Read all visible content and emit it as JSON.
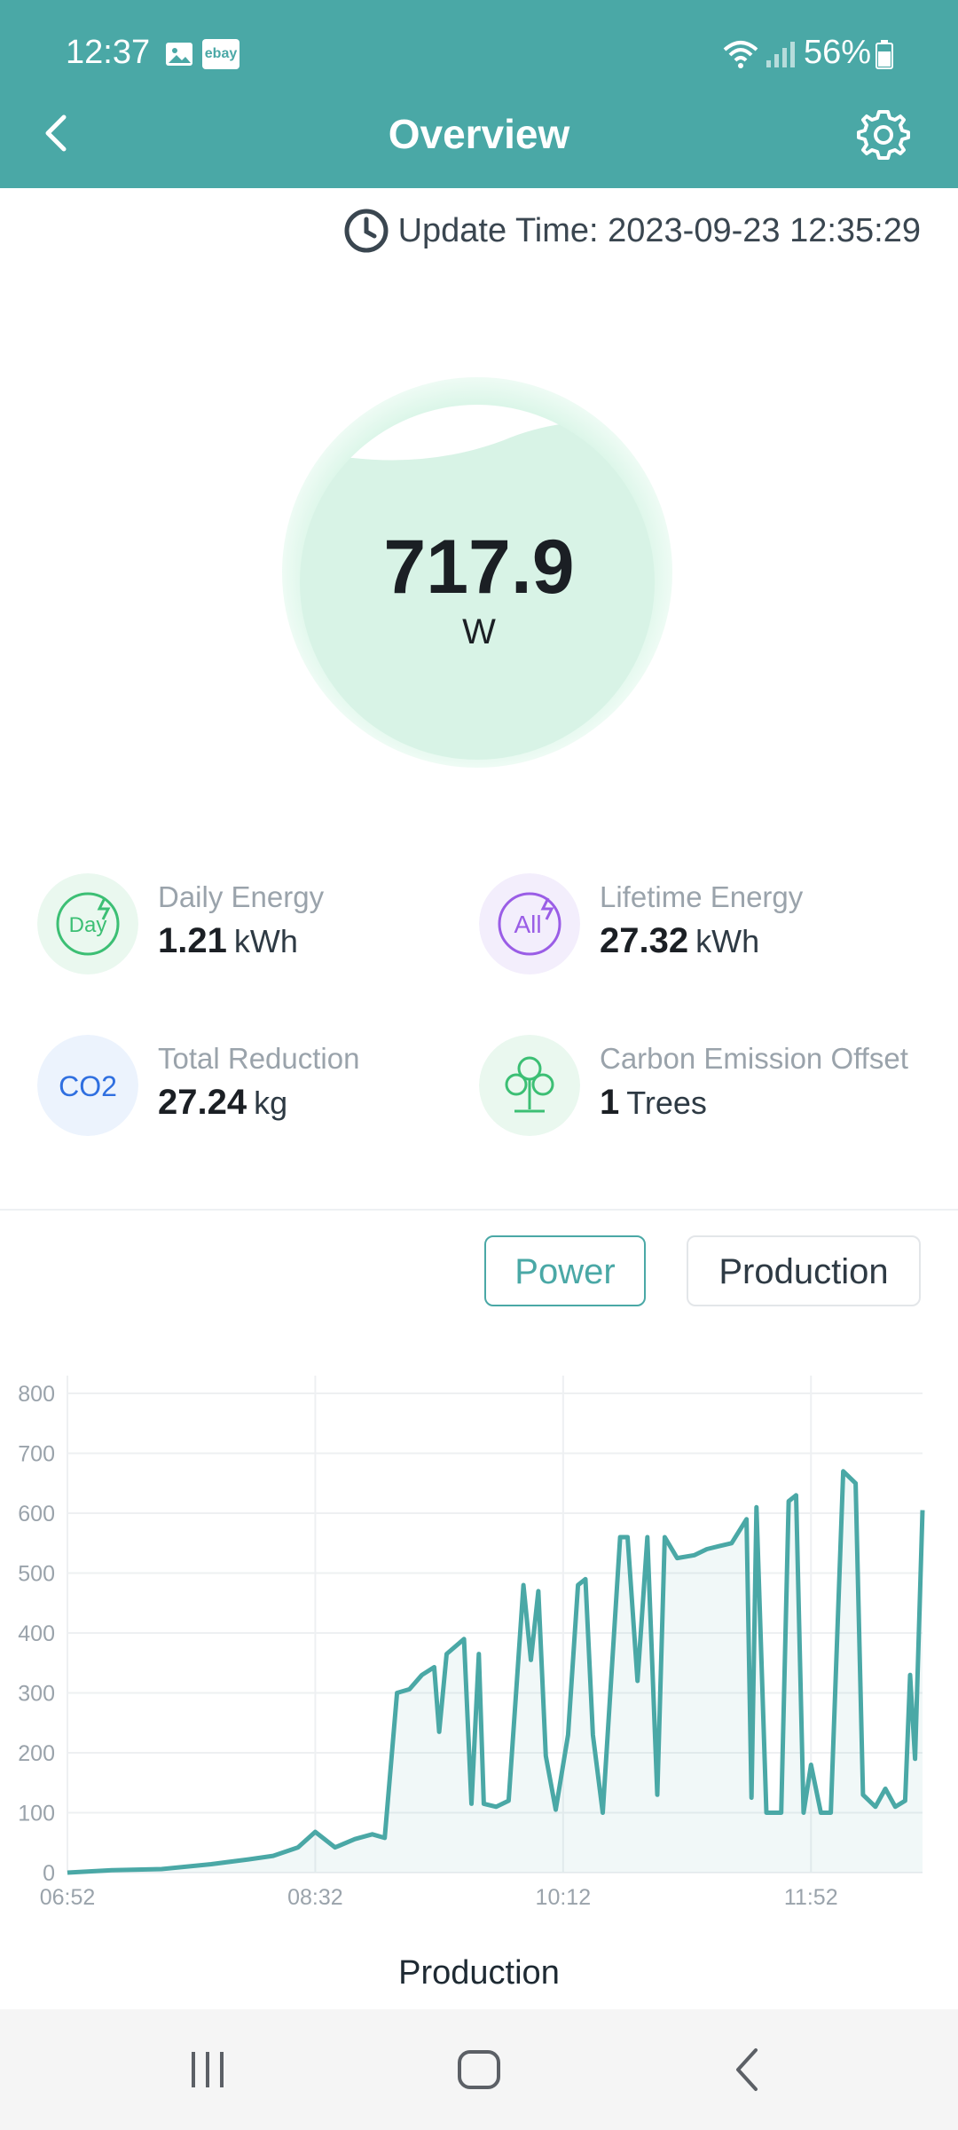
{
  "status_bar": {
    "time": "12:37",
    "battery": "56%",
    "ebay_label": "ebay"
  },
  "header": {
    "title": "Overview"
  },
  "update": {
    "label": "Update Time: 2023-09-23 12:35:29"
  },
  "power": {
    "value": "717.9",
    "unit": "W"
  },
  "stats": [
    {
      "label": "Daily Energy",
      "value": "1.21",
      "unit": "kWh",
      "icon": "day-energy-icon",
      "icon_text": "Day"
    },
    {
      "label": "Lifetime Energy",
      "value": "27.32",
      "unit": "kWh",
      "icon": "all-energy-icon",
      "icon_text": "All"
    },
    {
      "label": "Total Reduction",
      "value": "27.24",
      "unit": "kg",
      "icon": "co2-icon",
      "icon_text": "CO2"
    },
    {
      "label": "Carbon Emission Offset",
      "value": "1",
      "unit": "Trees",
      "icon": "tree-icon"
    }
  ],
  "tabs": {
    "power": "Power",
    "production": "Production"
  },
  "colors": {
    "accent": "#4aa8a6",
    "line": "#4aa8a6"
  },
  "chart_data": {
    "type": "area",
    "x_ticks": [
      "06:52",
      "08:32",
      "10:12",
      "11:52"
    ],
    "y_ticks": [
      "0",
      "100",
      "200",
      "300",
      "400",
      "500",
      "600",
      "700",
      "800"
    ],
    "ylim": [
      0,
      800
    ],
    "x_minutes_range": [
      "06:52",
      "12:37"
    ],
    "series": [
      {
        "name": "Production",
        "points": [
          [
            "06:52",
            0
          ],
          [
            "07:10",
            4
          ],
          [
            "07:30",
            6
          ],
          [
            "07:50",
            14
          ],
          [
            "08:05",
            22
          ],
          [
            "08:15",
            28
          ],
          [
            "08:25",
            42
          ],
          [
            "08:32",
            68
          ],
          [
            "08:40",
            42
          ],
          [
            "08:48",
            56
          ],
          [
            "08:55",
            64
          ],
          [
            "09:00",
            58
          ],
          [
            "09:05",
            300
          ],
          [
            "09:10",
            306
          ],
          [
            "09:15",
            330
          ],
          [
            "09:20",
            343
          ],
          [
            "09:22",
            235
          ],
          [
            "09:25",
            365
          ],
          [
            "09:32",
            390
          ],
          [
            "09:35",
            115
          ],
          [
            "09:38",
            365
          ],
          [
            "09:40",
            115
          ],
          [
            "09:45",
            110
          ],
          [
            "09:50",
            120
          ],
          [
            "09:53",
            300
          ],
          [
            "09:56",
            480
          ],
          [
            "09:59",
            355
          ],
          [
            "10:02",
            470
          ],
          [
            "10:05",
            195
          ],
          [
            "10:09",
            105
          ],
          [
            "10:14",
            230
          ],
          [
            "10:18",
            480
          ],
          [
            "10:21",
            490
          ],
          [
            "10:24",
            230
          ],
          [
            "10:28",
            100
          ],
          [
            "10:35",
            560
          ],
          [
            "10:38",
            560
          ],
          [
            "10:42",
            320
          ],
          [
            "10:46",
            560
          ],
          [
            "10:50",
            130
          ],
          [
            "10:53",
            560
          ],
          [
            "10:58",
            525
          ],
          [
            "11:05",
            530
          ],
          [
            "11:10",
            540
          ],
          [
            "11:15",
            545
          ],
          [
            "11:20",
            550
          ],
          [
            "11:26",
            590
          ],
          [
            "11:28",
            125
          ],
          [
            "11:30",
            610
          ],
          [
            "11:34",
            100
          ],
          [
            "11:40",
            100
          ],
          [
            "11:43",
            620
          ],
          [
            "11:46",
            630
          ],
          [
            "11:49",
            100
          ],
          [
            "11:52",
            180
          ],
          [
            "11:56",
            100
          ],
          [
            "12:00",
            100
          ],
          [
            "12:05",
            670
          ],
          [
            "12:10",
            650
          ],
          [
            "12:13",
            130
          ],
          [
            "12:18",
            110
          ],
          [
            "12:22",
            140
          ],
          [
            "12:26",
            110
          ],
          [
            "12:30",
            120
          ],
          [
            "12:32",
            330
          ],
          [
            "12:34",
            190
          ],
          [
            "12:37",
            605
          ]
        ]
      }
    ],
    "grid": true
  },
  "legend": {
    "label": "Production"
  }
}
